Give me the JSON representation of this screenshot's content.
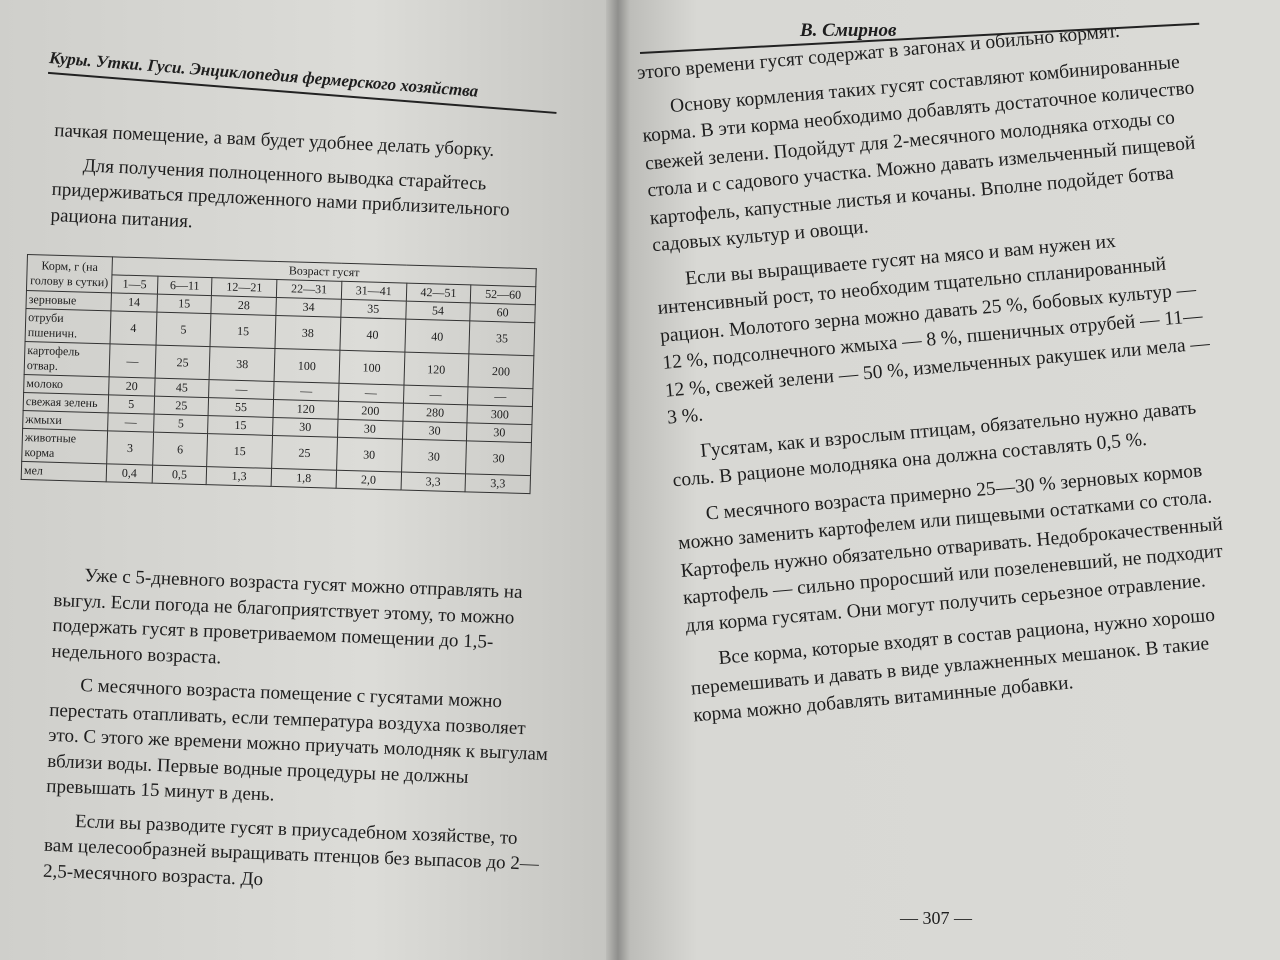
{
  "left_page": {
    "header": "Куры. Утки. Гуси. Энциклопедия фермерского хозяйства",
    "top_paragraphs": [
      "пачкая помещение, а вам будет удобнее делать уборку.",
      "Для получения полноценного выводка старайтесь придерживаться предложенного нами приблизительного рациона питания."
    ],
    "table": {
      "corner": "Корм, г (на голову в сутки)",
      "group_header": "Возраст гусят",
      "columns": [
        "1—5",
        "6—11",
        "12—21",
        "22—31",
        "31—41",
        "42—51",
        "52—60"
      ],
      "rows": [
        {
          "label": "зерновые",
          "values": [
            "14",
            "15",
            "28",
            "34",
            "35",
            "54",
            "60"
          ]
        },
        {
          "label": "отруби пшеничн.",
          "values": [
            "4",
            "5",
            "15",
            "38",
            "40",
            "40",
            "35"
          ]
        },
        {
          "label": "картофель отвар.",
          "values": [
            "—",
            "25",
            "38",
            "100",
            "100",
            "120",
            "200"
          ]
        },
        {
          "label": "молоко",
          "values": [
            "20",
            "45",
            "—",
            "—",
            "—",
            "—",
            "—"
          ]
        },
        {
          "label": "свежая зелень",
          "values": [
            "5",
            "25",
            "55",
            "120",
            "200",
            "280",
            "300"
          ]
        },
        {
          "label": "жмыхи",
          "values": [
            "—",
            "5",
            "15",
            "30",
            "30",
            "30",
            "30"
          ]
        },
        {
          "label": "животные корма",
          "values": [
            "3",
            "6",
            "15",
            "25",
            "30",
            "30",
            "30"
          ]
        },
        {
          "label": "мел",
          "values": [
            "0,4",
            "0,5",
            "1,3",
            "1,8",
            "2,0",
            "3,3",
            "3,3"
          ]
        }
      ]
    },
    "bottom_paragraphs": [
      "Уже с 5-дневного возраста гусят можно отправлять на выгул. Если погода не благоприятствует этому, то можно подержать гусят в проветриваемом помещении до 1,5-недельного возраста.",
      "С месячного возраста помещение с гусятами можно перестать отапливать, если температура воздуха позволяет это. С этого же времени можно приучать молодняк к выгулам вблизи воды. Первые водные процедуры не должны превышать 15 минут в день.",
      "Если вы разводите гусят в приусадебном хозяйстве, то вам целесообразней выращивать птенцов без выпасов до 2—2,5-месячного возраста. До"
    ]
  },
  "right_page": {
    "header": "В. Смирнов",
    "paragraphs": [
      "этого времени гусят содержат в загонах и обильно кормят.",
      "Основу кормления таких гусят составляют комбинированные корма. В эти корма необходимо добавлять достаточное количество свежей зелени. Подойдут для 2-месячного молодняка отходы со стола и с садового участка. Можно давать измельченный пищевой картофель, капустные листья и кочаны. Вполне подойдет ботва садовых культур и овощи.",
      "Если вы выращиваете гусят на мясо и вам нужен их интенсивный рост, то необходим тщательно спланированный рацион. Молотого зерна можно давать 25 %, бобовых культур — 12 %, подсолнечного жмыха — 8 %, пшеничных отрубей — 11—12 %, свежей зелени — 50 %, измельченных ракушек или мела — 3 %.",
      "Гусятам, как и взрослым птицам, обязательно нужно давать соль. В рационе молодняка она должна составлять 0,5 %.",
      "С месячного возраста примерно 25—30 % зерновых кормов можно заменить картофелем или пищевыми остатками со стола. Картофель нужно обязательно отваривать. Недоброкачественный картофель — сильно проросший или позеленевший, не подходит для корма гусятам. Они могут получить серьезное отравление.",
      "Все корма, которые входят в состав рациона, нужно хорошо перемешивать и давать в виде увлажненных мешанок. В такие корма можно добавлять витаминные добавки."
    ],
    "page_number": "— 307 —"
  }
}
